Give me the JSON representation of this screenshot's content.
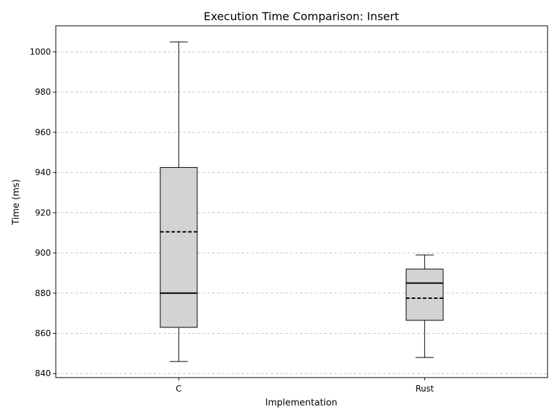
{
  "chart_data": {
    "type": "box",
    "title": "Execution Time Comparison: Insert",
    "xlabel": "Implementation",
    "ylabel": "Time (ms)",
    "ylim": [
      838,
      1013
    ],
    "yticks": [
      840,
      860,
      880,
      900,
      920,
      940,
      960,
      980,
      1000
    ],
    "grid": "y-dashed",
    "box_color": "#d3d3d3",
    "categories": [
      "C",
      "Rust"
    ],
    "boxes": [
      {
        "category": "C",
        "whisker_low": 846,
        "q1": 863,
        "median": 880,
        "mean": 910.5,
        "q3": 942.5,
        "whisker_high": 1005
      },
      {
        "category": "Rust",
        "whisker_low": 848,
        "q1": 866.5,
        "median": 885,
        "mean": 877.5,
        "q3": 892,
        "whisker_high": 899
      }
    ]
  }
}
